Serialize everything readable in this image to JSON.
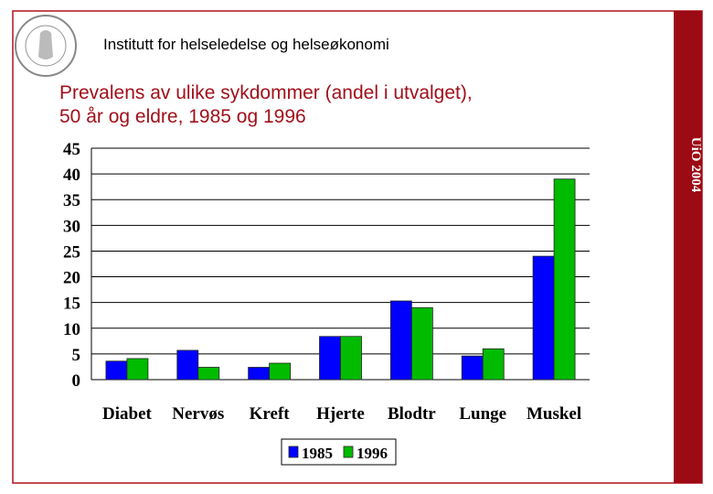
{
  "header": "Institutt for helseledelse og helseøkonomi",
  "side_label": "UiO 2004",
  "chart_data": {
    "type": "bar",
    "title": [
      "Prevalens av ulike sykdommer (andel i utvalget),",
      "50 år og eldre, 1985 og 1996"
    ],
    "categories": [
      "Diabet",
      "Nervøs",
      "Kreft",
      "Hjerte",
      "Blodtr",
      "Lunge",
      "Muskel"
    ],
    "series": [
      {
        "name": "1985",
        "color": "#0000ff",
        "values": [
          3.6,
          5.7,
          2.4,
          8.4,
          15.3,
          4.6,
          24
        ]
      },
      {
        "name": "1996",
        "color": "#00bb00",
        "values": [
          4.1,
          2.4,
          3.2,
          8.4,
          14,
          6,
          39
        ]
      }
    ],
    "ylim": [
      0,
      45
    ],
    "yticks": [
      0,
      5,
      10,
      15,
      20,
      25,
      30,
      35,
      40,
      45
    ],
    "grid": true,
    "legend": "bottom"
  }
}
